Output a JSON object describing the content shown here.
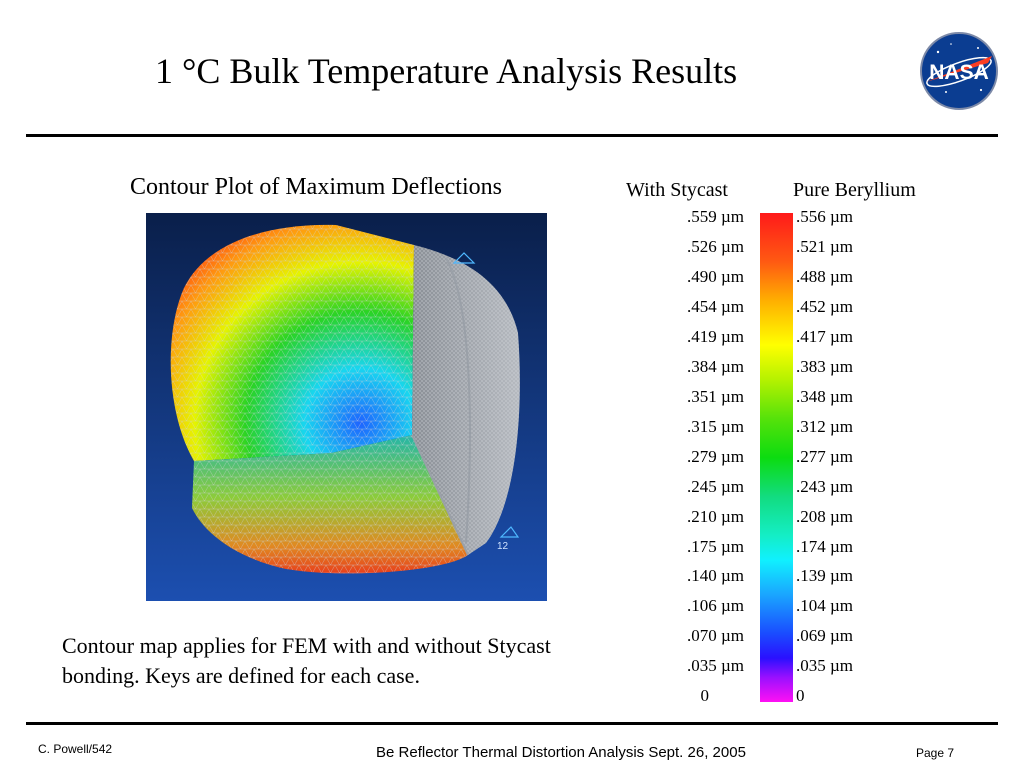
{
  "slide": {
    "title": "1 °C Bulk Temperature Analysis Results",
    "plot_heading": "Contour Plot of Maximum Deflections",
    "caption_line1": "Contour map applies for FEM with and without Stycast",
    "caption_line2": "bonding. Keys are defined for each case.",
    "logo_text": "NASA",
    "fem_node_label": "12"
  },
  "legend": {
    "left_header": "With Stycast",
    "right_header": "Pure Beryllium",
    "left_values": [
      ".559 µm",
      ".526 µm",
      ".490 µm",
      ".454 µm",
      ".419 µm",
      ".384 µm",
      ".351 µm",
      ".315 µm",
      ".279 µm",
      ".245 µm",
      ".210 µm",
      ".175 µm",
      ".140 µm",
      ".106 µm",
      ".070 µm",
      ".035 µm",
      "0"
    ],
    "right_values": [
      ".556 µm",
      ".521 µm",
      ".488 µm",
      ".452 µm",
      ".417 µm",
      ".383 µm",
      ".348 µm",
      ".312 µm",
      ".277 µm",
      ".243 µm",
      ".208 µm",
      ".174 µm",
      ".139 µm",
      ".104 µm",
      ".069 µm",
      ".035 µm",
      "0"
    ],
    "colors": [
      "#ff1a1a",
      "#ff5a12",
      "#ffb000",
      "#ffff00",
      "#b6f200",
      "#56e20a",
      "#0cdc10",
      "#12dc80",
      "#14eec6",
      "#10f0ff",
      "#1aa6ff",
      "#1a4cff",
      "#2a10ff",
      "#9a10ff",
      "#ff10f4"
    ]
  },
  "footer": {
    "author": "C. Powell/542",
    "center": "Be Reflector Thermal Distortion Analysis   Sept. 26, 2005",
    "page": "Page 7"
  }
}
